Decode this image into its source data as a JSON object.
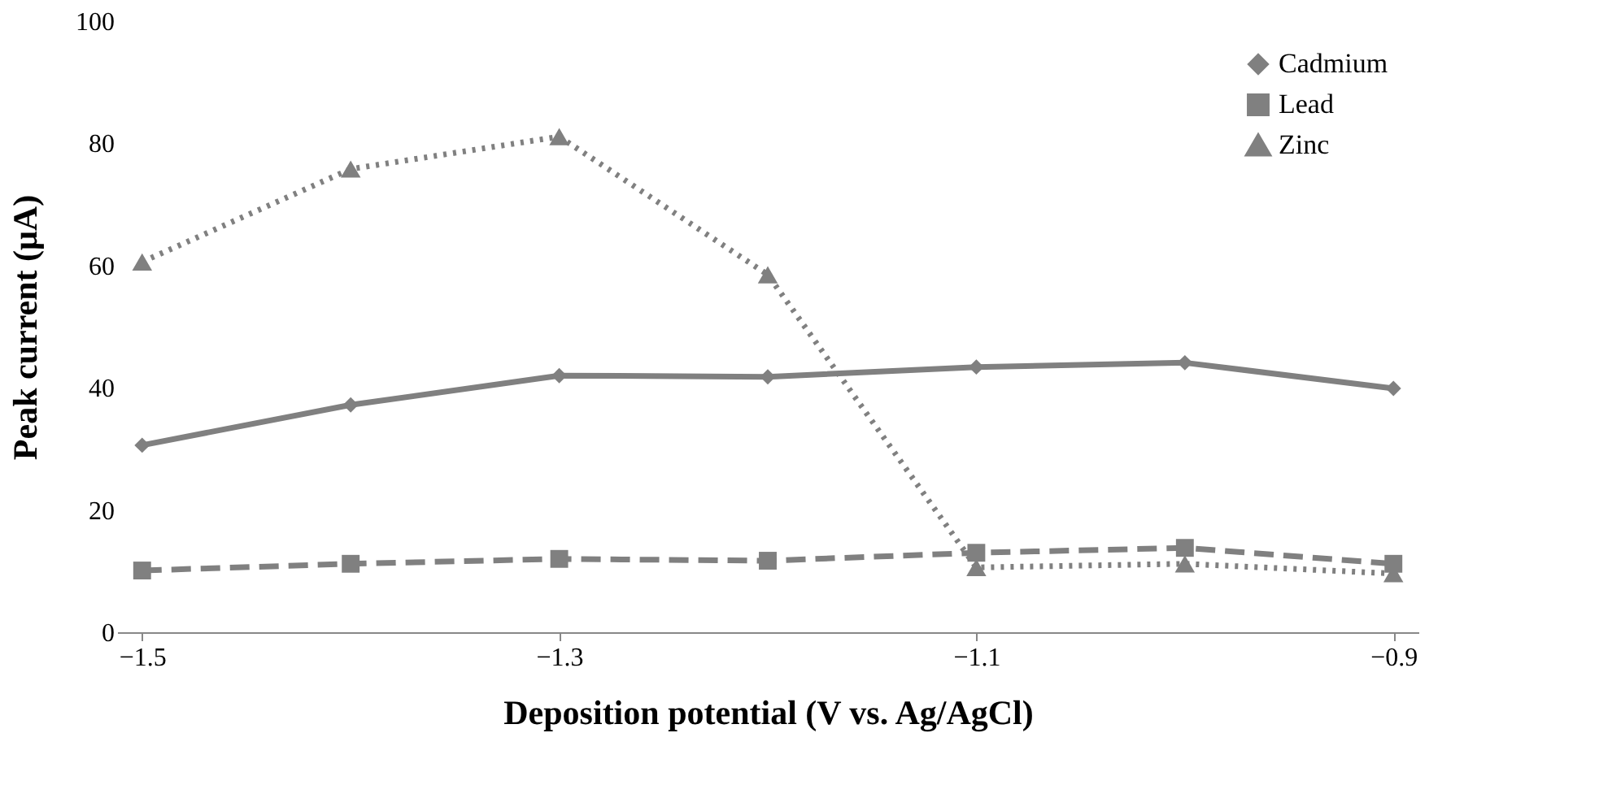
{
  "chart_data": {
    "type": "line",
    "xlabel": "Deposition potential (V vs. Ag/AgCl)",
    "ylabel": "Peak current (μA)",
    "x": [
      -1.5,
      -1.4,
      -1.3,
      -1.2,
      -1.1,
      -1.0,
      -0.9
    ],
    "xlim": [
      -1.512,
      -0.888
    ],
    "xticks": [
      -1.5,
      -1.3,
      -1.1,
      -0.9
    ],
    "ylim": [
      0,
      100
    ],
    "yticks": [
      0,
      20,
      40,
      60,
      80,
      100
    ],
    "grid": false,
    "legend": "top right",
    "series": [
      {
        "name": "Cadmium",
        "color": "#808080",
        "marker": "diamond",
        "line_style": "solid",
        "values": [
          30.6,
          37.2,
          42.0,
          41.8,
          43.4,
          44.1,
          39.9
        ]
      },
      {
        "name": "Lead",
        "color": "#808080",
        "marker": "square",
        "line_style": "dashed",
        "values": [
          10.1,
          11.2,
          12.0,
          11.7,
          13.0,
          13.8,
          11.2
        ]
      },
      {
        "name": "Zinc",
        "color": "#808080",
        "marker": "triangle",
        "line_style": "dotted",
        "values": [
          60.6,
          75.8,
          81.1,
          58.5,
          10.6,
          11.2,
          9.6
        ]
      }
    ]
  }
}
